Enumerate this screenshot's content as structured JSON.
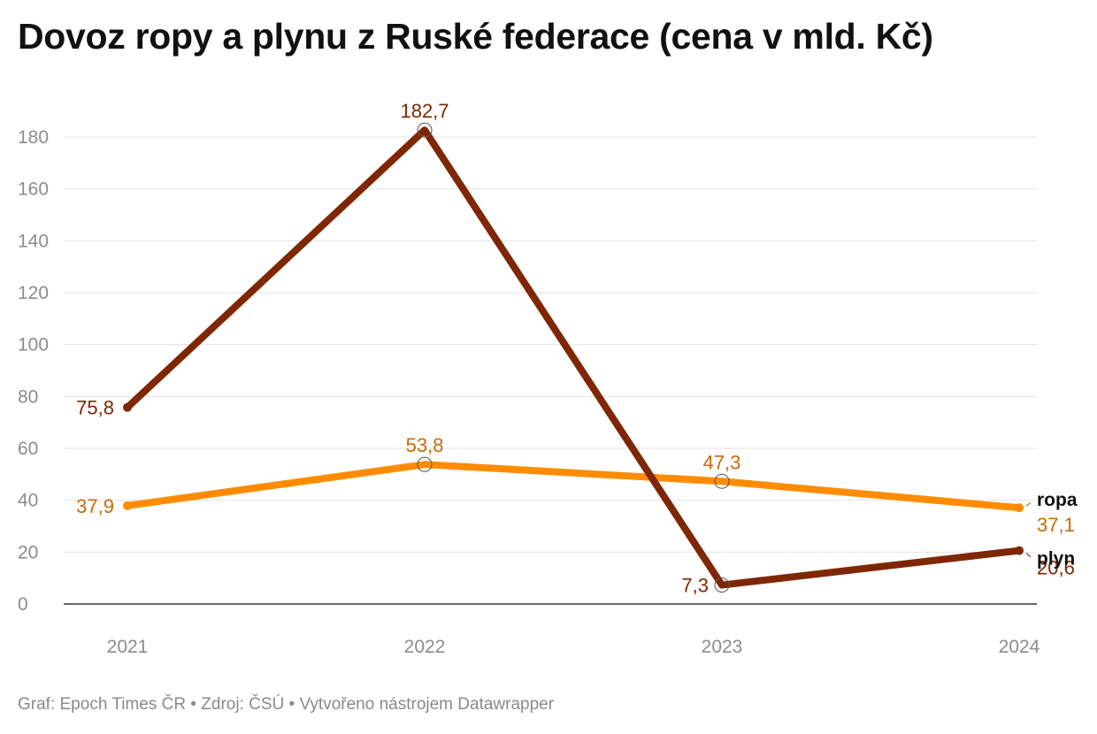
{
  "title": "Dovoz ropy a plynu z Ruské federace (cena v mld. Kč)",
  "footer": {
    "credit": "Graf: Epoch Times ČR",
    "source": "Zdroj: ČSÚ",
    "tool": "Vytvořeno nástrojem Datawrapper",
    "separator": " • "
  },
  "chart_data": {
    "type": "line",
    "title": "Dovoz ropy a plynu z Ruské federace (cena v mld. Kč)",
    "xlabel": "",
    "ylabel": "",
    "x": [
      "2021",
      "2022",
      "2023",
      "2024"
    ],
    "ylim": [
      0,
      180
    ],
    "yticks": [
      0,
      20,
      40,
      60,
      80,
      100,
      120,
      140,
      160,
      180
    ],
    "grid": true,
    "legend": "direct labels at line ends (right)",
    "series": [
      {
        "name": "plyn",
        "color": "#7f2704",
        "values": [
          75.8,
          182.7,
          7.3,
          20.6
        ],
        "labels": [
          "75,8",
          "182,7",
          "7,3",
          "20,6"
        ]
      },
      {
        "name": "ropa",
        "color": "#ff8c00",
        "label_color": "#c96a00",
        "values": [
          37.9,
          53.8,
          47.3,
          37.1
        ],
        "labels": [
          "37,9",
          "53,8",
          "47,3",
          "37,1"
        ]
      }
    ]
  }
}
